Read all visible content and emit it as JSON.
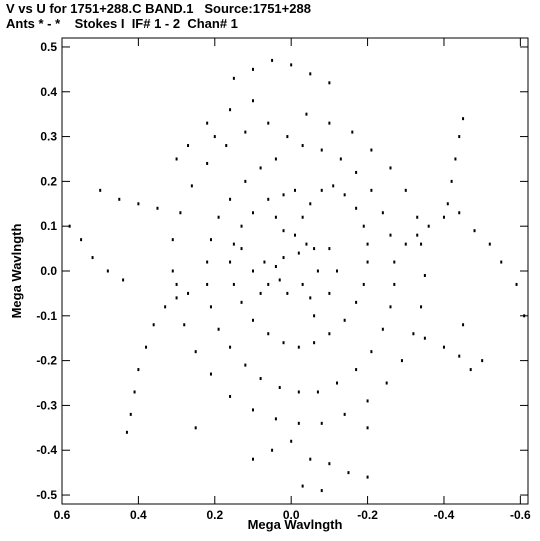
{
  "chart_data": {
    "type": "scatter",
    "title": "V vs U for 1751+288.C BAND.1   Source:1751+288",
    "subtitle": "Ants * - *    Stokes I  IF# 1 - 2  Chan# 1",
    "xlabel": "Mega Wavlngth",
    "ylabel": "Mega Wavlngth",
    "xlim": [
      0.6,
      -0.62
    ],
    "ylim": [
      -0.52,
      0.52
    ],
    "x_ticks": [
      0.6,
      0.4,
      0.2,
      0.0,
      -0.2,
      -0.4,
      -0.6
    ],
    "x_tick_labels": [
      "0.6",
      "0.4",
      "0.2",
      "0.0",
      "-0.2",
      "-0.4",
      "-0.6"
    ],
    "y_ticks": [
      0.5,
      0.4,
      0.3,
      0.2,
      0.1,
      0.0,
      -0.1,
      -0.2,
      -0.3,
      -0.4,
      -0.5
    ],
    "y_tick_labels": [
      "0.5",
      "0.4",
      "0.3",
      "0.2",
      "0.1",
      "0.0",
      "-0.1",
      "-0.2",
      "-0.3",
      "-0.4",
      "-0.5"
    ],
    "point_color": "#000000",
    "grid": false,
    "points": [
      [
        -0.02,
        0.04
      ],
      [
        -0.04,
        0.06
      ],
      [
        -0.06,
        0.05
      ],
      [
        0.02,
        0.03
      ],
      [
        0.04,
        0.01
      ],
      [
        0.03,
        -0.02
      ],
      [
        -0.03,
        -0.03
      ],
      [
        -0.05,
        -0.06
      ],
      [
        0.01,
        -0.05
      ],
      [
        0.06,
        -0.03
      ],
      [
        0.07,
        0.02
      ],
      [
        -0.07,
        0.0
      ],
      [
        -0.01,
        0.08
      ],
      [
        0.02,
        0.09
      ],
      [
        -0.03,
        0.12
      ],
      [
        -0.05,
        0.15
      ],
      [
        -0.08,
        0.18
      ],
      [
        -0.11,
        0.19
      ],
      [
        -0.14,
        0.17
      ],
      [
        -0.17,
        0.14
      ],
      [
        -0.19,
        0.1
      ],
      [
        -0.2,
        0.06
      ],
      [
        -0.2,
        0.02
      ],
      [
        -0.19,
        -0.03
      ],
      [
        -0.17,
        -0.07
      ],
      [
        -0.14,
        -0.11
      ],
      [
        -0.1,
        -0.14
      ],
      [
        -0.06,
        -0.16
      ],
      [
        -0.02,
        -0.17
      ],
      [
        0.02,
        -0.16
      ],
      [
        0.06,
        -0.14
      ],
      [
        0.1,
        -0.11
      ],
      [
        0.13,
        -0.07
      ],
      [
        0.15,
        -0.03
      ],
      [
        0.16,
        0.02
      ],
      [
        0.15,
        0.06
      ],
      [
        0.13,
        0.1
      ],
      [
        0.1,
        0.13
      ],
      [
        0.06,
        0.16
      ],
      [
        0.02,
        0.17
      ],
      [
        -0.01,
        0.18
      ],
      [
        0.04,
        0.25
      ],
      [
        0.08,
        0.23
      ],
      [
        0.12,
        0.2
      ],
      [
        0.16,
        0.16
      ],
      [
        0.19,
        0.12
      ],
      [
        0.21,
        0.07
      ],
      [
        0.22,
        0.02
      ],
      [
        0.22,
        -0.03
      ],
      [
        0.21,
        -0.08
      ],
      [
        0.19,
        -0.13
      ],
      [
        0.16,
        -0.17
      ],
      [
        0.12,
        -0.21
      ],
      [
        0.08,
        -0.24
      ],
      [
        0.03,
        -0.26
      ],
      [
        -0.02,
        -0.27
      ],
      [
        -0.07,
        -0.27
      ],
      [
        -0.12,
        -0.25
      ],
      [
        -0.17,
        -0.22
      ],
      [
        -0.21,
        -0.18
      ],
      [
        -0.24,
        -0.13
      ],
      [
        -0.26,
        -0.08
      ],
      [
        -0.27,
        -0.03
      ],
      [
        -0.27,
        0.02
      ],
      [
        -0.26,
        0.08
      ],
      [
        -0.24,
        0.13
      ],
      [
        -0.21,
        0.18
      ],
      [
        -0.17,
        0.22
      ],
      [
        -0.13,
        0.25
      ],
      [
        -0.08,
        0.27
      ],
      [
        -0.03,
        0.28
      ],
      [
        0.01,
        0.3
      ],
      [
        0.06,
        0.33
      ],
      [
        0.12,
        0.31
      ],
      [
        0.17,
        0.28
      ],
      [
        0.22,
        0.24
      ],
      [
        0.26,
        0.19
      ],
      [
        0.29,
        0.13
      ],
      [
        0.31,
        0.07
      ],
      [
        0.31,
        0.0
      ],
      [
        0.3,
        -0.06
      ],
      [
        0.28,
        -0.12
      ],
      [
        0.25,
        -0.18
      ],
      [
        0.21,
        -0.23
      ],
      [
        0.16,
        -0.28
      ],
      [
        0.1,
        -0.31
      ],
      [
        0.04,
        -0.33
      ],
      [
        -0.02,
        -0.34
      ],
      [
        -0.08,
        -0.34
      ],
      [
        -0.14,
        -0.32
      ],
      [
        -0.2,
        -0.29
      ],
      [
        -0.25,
        -0.25
      ],
      [
        -0.29,
        -0.2
      ],
      [
        -0.32,
        -0.14
      ],
      [
        -0.34,
        -0.08
      ],
      [
        -0.35,
        -0.01
      ],
      [
        -0.34,
        0.06
      ],
      [
        -0.33,
        0.12
      ],
      [
        -0.3,
        0.18
      ],
      [
        -0.26,
        0.23
      ],
      [
        -0.21,
        0.27
      ],
      [
        -0.16,
        0.31
      ],
      [
        -0.1,
        0.33
      ],
      [
        -0.04,
        0.35
      ],
      [
        0.1,
        0.38
      ],
      [
        0.16,
        0.36
      ],
      [
        0.22,
        0.33
      ],
      [
        0.27,
        0.28
      ],
      [
        -0.1,
        0.42
      ],
      [
        -0.05,
        0.44
      ],
      [
        0.0,
        0.46
      ],
      [
        0.05,
        0.47
      ],
      [
        0.1,
        0.45
      ],
      [
        0.15,
        0.43
      ],
      [
        0.0,
        -0.38
      ],
      [
        0.05,
        -0.4
      ],
      [
        -0.05,
        -0.42
      ],
      [
        -0.1,
        -0.43
      ],
      [
        -0.15,
        -0.45
      ],
      [
        -0.2,
        -0.46
      ],
      [
        0.1,
        -0.42
      ],
      [
        -0.03,
        -0.48
      ],
      [
        -0.08,
        -0.49
      ],
      [
        0.3,
        -0.03
      ],
      [
        0.33,
        -0.08
      ],
      [
        0.36,
        -0.12
      ],
      [
        0.38,
        -0.17
      ],
      [
        0.4,
        -0.22
      ],
      [
        0.41,
        -0.27
      ],
      [
        0.42,
        -0.32
      ],
      [
        0.43,
        -0.36
      ],
      [
        0.27,
        -0.05
      ],
      [
        -0.3,
        0.06
      ],
      [
        -0.33,
        0.08
      ],
      [
        -0.36,
        0.1
      ],
      [
        -0.4,
        0.12
      ],
      [
        -0.44,
        0.13
      ],
      [
        -0.48,
        0.09
      ],
      [
        -0.52,
        0.06
      ],
      [
        -0.55,
        0.02
      ],
      [
        -0.59,
        -0.03
      ],
      [
        -0.61,
        -0.1
      ],
      [
        -0.42,
        0.2
      ],
      [
        -0.43,
        0.25
      ],
      [
        -0.44,
        0.3
      ],
      [
        -0.45,
        0.34
      ],
      [
        -0.41,
        0.15
      ],
      [
        0.5,
        0.18
      ],
      [
        0.45,
        0.16
      ],
      [
        0.4,
        0.15
      ],
      [
        0.35,
        0.14
      ],
      [
        0.55,
        0.07
      ],
      [
        0.52,
        0.03
      ],
      [
        0.48,
        0.0
      ],
      [
        0.44,
        -0.02
      ],
      [
        0.58,
        0.1
      ],
      [
        -0.35,
        -0.15
      ],
      [
        -0.4,
        -0.17
      ],
      [
        -0.44,
        -0.19
      ],
      [
        -0.47,
        -0.22
      ],
      [
        -0.5,
        -0.2
      ],
      [
        -0.45,
        -0.12
      ],
      [
        0.13,
        0.05
      ],
      [
        0.1,
        0.0
      ],
      [
        0.08,
        -0.05
      ],
      [
        -0.1,
        0.05
      ],
      [
        -0.12,
        0.0
      ],
      [
        -0.1,
        -0.05
      ],
      [
        0.04,
        0.12
      ],
      [
        -0.06,
        -0.1
      ],
      [
        0.2,
        0.3
      ],
      [
        -0.2,
        -0.35
      ],
      [
        0.25,
        -0.35
      ],
      [
        0.3,
        0.25
      ]
    ]
  }
}
